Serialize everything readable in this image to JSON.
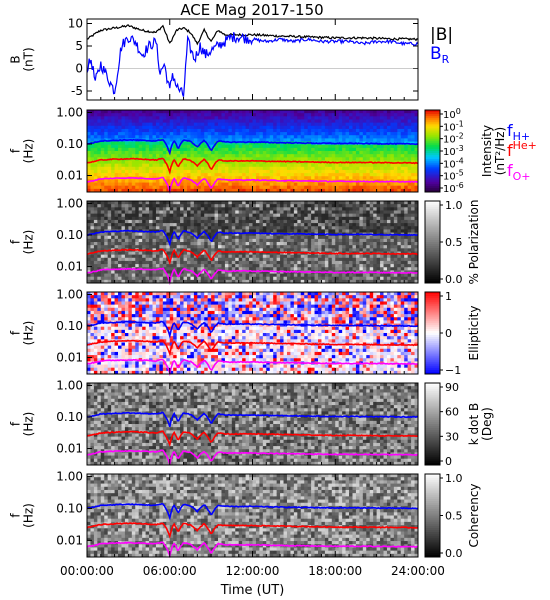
{
  "title": "ACE Mag 2017-150",
  "xaxis": {
    "label": "Time (UT)",
    "ticks": [
      "00:00:00",
      "06:00:00",
      "12:00:00",
      "18:00:00",
      "24:00:00"
    ],
    "tick_hours": [
      0,
      6,
      12,
      18,
      24
    ],
    "range_hours": [
      0,
      24
    ]
  },
  "colors": {
    "background": "#ffffff",
    "axis": "#000000",
    "b_total": "#000000",
    "b_r": "#0000ff",
    "f_h": "#0000ff",
    "f_he": "#ff0000",
    "f_o": "#ff00ff"
  },
  "chart_data": [
    {
      "type": "line",
      "panel": "B",
      "ylabel_lines": [
        "B",
        "(nT)"
      ],
      "ylim": [
        -7,
        11
      ],
      "yticks": [
        10,
        5,
        0,
        -5
      ],
      "series": [
        {
          "name": "|B|",
          "color_key": "b_total",
          "x": [
            0,
            0.5,
            1,
            2,
            3,
            4,
            5,
            5.5,
            6,
            6.5,
            7,
            7.5,
            8,
            8.5,
            9,
            9.5,
            10,
            11,
            12,
            14,
            16,
            18,
            20,
            22,
            24
          ],
          "y": [
            6.5,
            7.5,
            8.5,
            9,
            9.5,
            8.5,
            8,
            9.5,
            5.5,
            8.5,
            9,
            8,
            5.5,
            8.5,
            6,
            8.5,
            7.5,
            7.5,
            7.5,
            7.2,
            7,
            6.8,
            6.8,
            6.6,
            6.5
          ]
        },
        {
          "name": "B_R",
          "color_key": "b_r",
          "x": [
            0,
            0.3,
            0.6,
            1,
            1.5,
            2,
            2.5,
            3,
            3.5,
            4,
            4.5,
            5,
            5.3,
            5.6,
            6,
            6.2,
            6.5,
            7,
            7.3,
            7.8,
            8.2,
            8.6,
            9,
            9.5,
            10,
            10.5,
            11,
            12,
            13,
            14,
            15,
            16,
            17,
            18,
            19,
            20,
            21,
            22,
            23,
            24
          ],
          "y": [
            0,
            2,
            -3,
            1,
            -2,
            -5,
            5,
            7,
            6,
            3,
            5,
            6,
            -1,
            1,
            -5,
            -1,
            -4,
            -6,
            6,
            2,
            5,
            3,
            4,
            5,
            6,
            7,
            7,
            6.5,
            6,
            6.5,
            6,
            6.5,
            6,
            6,
            6,
            5.5,
            6,
            6,
            5.5,
            5.5
          ]
        }
      ],
      "legend": [
        {
          "label": "|B|",
          "color_key": "b_total"
        },
        {
          "label": "B",
          "sub": "R",
          "color_key": "b_r"
        }
      ]
    },
    {
      "type": "heatmap",
      "panel": "intensity",
      "ylabel_lines": [
        "f",
        "(Hz)"
      ],
      "y_scale": "log",
      "ylim": [
        0.003,
        1.2
      ],
      "yticks": [
        1.0,
        0.1,
        0.01
      ],
      "yticklabels": [
        "1.00",
        "0.10",
        "0.01"
      ],
      "colorbar": {
        "label_lines": [
          "Intensity",
          "(nT²/Hz)"
        ],
        "colormap": "rainbow",
        "ticks": [
          {
            "base": "10",
            "exp": "0"
          },
          {
            "base": "10",
            "exp": "-1"
          },
          {
            "base": "10",
            "exp": "-2"
          },
          {
            "base": "10",
            "exp": "-3"
          },
          {
            "base": "10",
            "exp": "-4"
          },
          {
            "base": "10",
            "exp": "-5"
          },
          {
            "base": "10",
            "exp": "-6"
          }
        ]
      },
      "legend": [
        {
          "label": "f",
          "sub": "H+",
          "color_key": "f_h"
        },
        {
          "label": "f",
          "sup": "He+",
          "color_key": "f_he"
        },
        {
          "label": "f",
          "sub": "O+",
          "color_key": "f_o"
        }
      ]
    },
    {
      "type": "heatmap",
      "panel": "polarization",
      "ylabel_lines": [
        "f",
        "(Hz)"
      ],
      "y_scale": "log",
      "ylim": [
        0.003,
        1.2
      ],
      "yticks": [
        1.0,
        0.1,
        0.01
      ],
      "yticklabels": [
        "1.00",
        "0.10",
        "0.01"
      ],
      "colorbar": {
        "label_lines": [
          "% Polarization"
        ],
        "colormap": "gray",
        "ticks": [
          "1.0",
          "0.5",
          "0.0"
        ]
      }
    },
    {
      "type": "heatmap",
      "panel": "ellipticity",
      "ylabel_lines": [
        "f",
        "(Hz)"
      ],
      "y_scale": "log",
      "ylim": [
        0.003,
        1.2
      ],
      "yticks": [
        1.0,
        0.1,
        0.01
      ],
      "yticklabels": [
        "1.00",
        "0.10",
        "0.01"
      ],
      "colorbar": {
        "label_lines": [
          "Ellipticity"
        ],
        "colormap": "bwr",
        "ticks": [
          "1",
          "0",
          "−1"
        ]
      }
    },
    {
      "type": "heatmap",
      "panel": "k_dot_b",
      "ylabel_lines": [
        "f",
        "(Hz)"
      ],
      "y_scale": "log",
      "ylim": [
        0.003,
        1.2
      ],
      "yticks": [
        1.0,
        0.1,
        0.01
      ],
      "yticklabels": [
        "1.00",
        "0.10",
        "0.01"
      ],
      "colorbar": {
        "label_lines": [
          "k dot B",
          "(Deg)"
        ],
        "colormap": "gray",
        "ticks": [
          "90",
          "60",
          "30",
          "0"
        ]
      }
    },
    {
      "type": "heatmap",
      "panel": "coherency",
      "ylabel_lines": [
        "f",
        "(Hz)"
      ],
      "y_scale": "log",
      "ylim": [
        0.003,
        1.2
      ],
      "yticks": [
        1.0,
        0.1,
        0.01
      ],
      "yticklabels": [
        "1.00",
        "0.10",
        "0.01"
      ],
      "colorbar": {
        "label_lines": [
          "Coherency"
        ],
        "colormap": "gray",
        "ticks": [
          "1.0",
          "0.5",
          "0.0"
        ]
      }
    }
  ],
  "gyrofrequency_lines": {
    "hours": [
      0,
      0.5,
      1,
      2,
      3,
      4,
      5,
      5.5,
      6,
      6.3,
      6.6,
      7,
      7.5,
      8,
      8.5,
      9,
      9.5,
      10,
      11,
      12,
      14,
      16,
      18,
      20,
      22,
      24
    ],
    "f_h": [
      0.1,
      0.11,
      0.125,
      0.13,
      0.135,
      0.13,
      0.125,
      0.14,
      0.05,
      0.13,
      0.07,
      0.135,
      0.12,
      0.08,
      0.13,
      0.06,
      0.125,
      0.115,
      0.115,
      0.115,
      0.11,
      0.107,
      0.104,
      0.104,
      0.102,
      0.1
    ],
    "f_he": [
      0.025,
      0.028,
      0.031,
      0.033,
      0.034,
      0.033,
      0.031,
      0.035,
      0.013,
      0.033,
      0.018,
      0.034,
      0.03,
      0.02,
      0.033,
      0.015,
      0.031,
      0.029,
      0.029,
      0.029,
      0.028,
      0.027,
      0.026,
      0.026,
      0.0255,
      0.025
    ],
    "f_o": [
      0.0063,
      0.0069,
      0.0078,
      0.0082,
      0.0084,
      0.0082,
      0.0078,
      0.0088,
      0.0032,
      0.0082,
      0.0045,
      0.0084,
      0.0075,
      0.005,
      0.0082,
      0.0038,
      0.0078,
      0.0072,
      0.0072,
      0.0072,
      0.0069,
      0.0067,
      0.0065,
      0.0065,
      0.0064,
      0.0063
    ]
  }
}
